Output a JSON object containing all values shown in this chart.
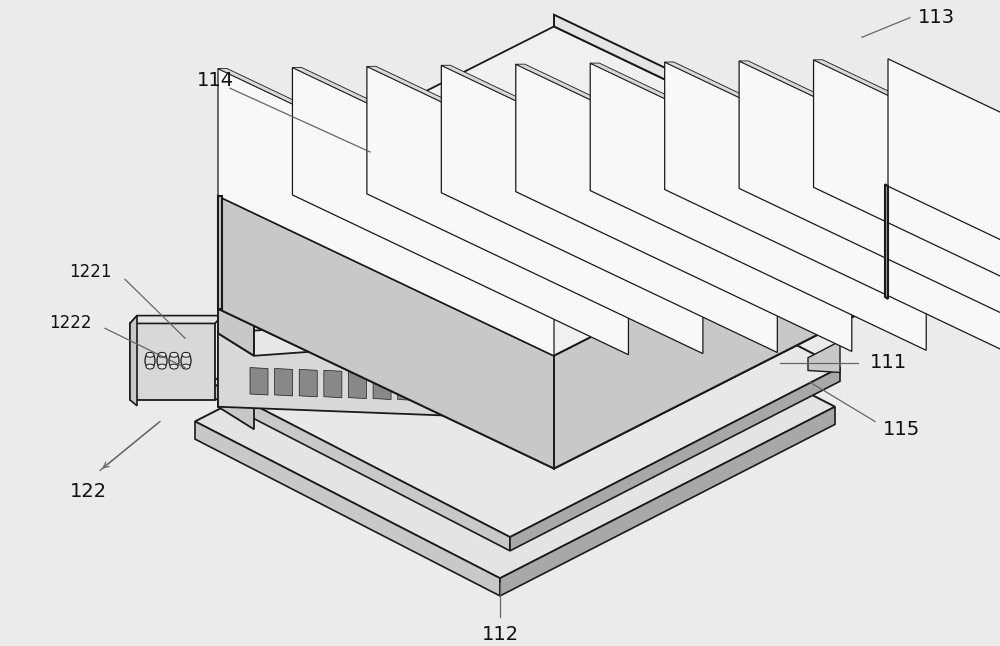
{
  "bg_color": "#ebebeb",
  "line_color": "#1a1a1a",
  "white_fill": "#f8f8f8",
  "light_fill": "#e4e4e4",
  "mid_fill": "#c8c8c8",
  "dark_fill": "#a8a8a8",
  "label_color": "#111111",
  "ann_color": "#666666"
}
